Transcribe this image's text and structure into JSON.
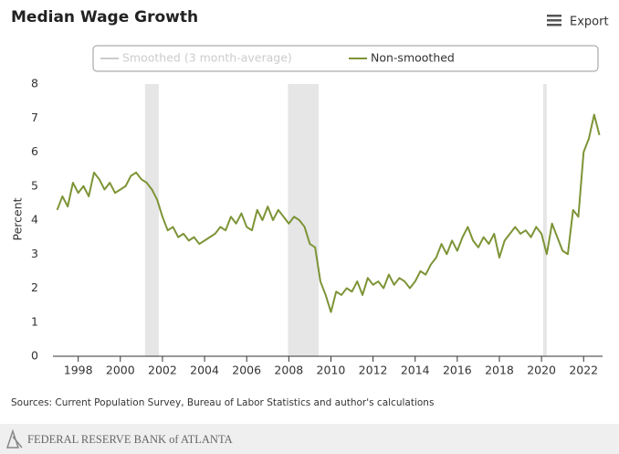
{
  "chart_data": {
    "type": "line",
    "title": "Median Wage Growth",
    "export_label": "Export",
    "y_label": "Percent",
    "source": "Sources: Current Population Survey, Bureau of Labor Statistics and author's calculations",
    "footer": "FEDERAL RESERVE BANK of ATLANTA",
    "hidden_legend_items": [
      {
        "name": "Smoothed (3 month-average)",
        "color": "#cccccc"
      }
    ],
    "recession_color": "#e6e6e6",
    "recessions": [
      [
        2001.17,
        2001.83
      ],
      [
        2007.96,
        2009.42
      ],
      [
        2020.08,
        2020.25
      ]
    ],
    "xlim": [
      1996.8,
      2022.9
    ],
    "xticks": [
      1998,
      2000,
      2002,
      2004,
      2006,
      2008,
      2010,
      2012,
      2014,
      2016,
      2018,
      2020,
      2022
    ],
    "ylim": [
      0,
      8
    ],
    "yticks": [
      0,
      1,
      2,
      3,
      4,
      5,
      6,
      7,
      8
    ],
    "x": [
      1997,
      1997.25,
      1997.5,
      1997.75,
      1998,
      1998.25,
      1998.5,
      1998.75,
      1999,
      1999.25,
      1999.5,
      1999.75,
      2000,
      2000.25,
      2000.5,
      2000.75,
      2001,
      2001.25,
      2001.5,
      2001.75,
      2002,
      2002.25,
      2002.5,
      2002.75,
      2003,
      2003.25,
      2003.5,
      2003.75,
      2004,
      2004.25,
      2004.5,
      2004.75,
      2005,
      2005.25,
      2005.5,
      2005.75,
      2006,
      2006.25,
      2006.5,
      2006.75,
      2007,
      2007.25,
      2007.5,
      2007.75,
      2008,
      2008.25,
      2008.5,
      2008.75,
      2009,
      2009.25,
      2009.5,
      2009.75,
      2010,
      2010.25,
      2010.5,
      2010.75,
      2011,
      2011.25,
      2011.5,
      2011.75,
      2012,
      2012.25,
      2012.5,
      2012.75,
      2013,
      2013.25,
      2013.5,
      2013.75,
      2014,
      2014.25,
      2014.5,
      2014.75,
      2015,
      2015.25,
      2015.5,
      2015.75,
      2016,
      2016.25,
      2016.5,
      2016.75,
      2017,
      2017.25,
      2017.5,
      2017.75,
      2018,
      2018.25,
      2018.5,
      2018.75,
      2019,
      2019.25,
      2019.5,
      2019.75,
      2020,
      2020.25,
      2020.5,
      2020.75,
      2021,
      2021.25,
      2021.5,
      2021.75,
      2022,
      2022.25,
      2022.5,
      2022.75
    ],
    "series": [
      {
        "name": "Non-smoothed",
        "color": "#7d9437",
        "values": [
          4.3,
          4.7,
          4.4,
          5.1,
          4.8,
          5.0,
          4.7,
          5.4,
          5.2,
          4.9,
          5.1,
          4.8,
          4.9,
          5.0,
          5.3,
          5.4,
          5.2,
          5.1,
          4.9,
          4.6,
          4.1,
          3.7,
          3.8,
          3.5,
          3.6,
          3.4,
          3.5,
          3.3,
          3.4,
          3.5,
          3.6,
          3.8,
          3.7,
          4.1,
          3.9,
          4.2,
          3.8,
          3.7,
          4.3,
          4.0,
          4.4,
          4.0,
          4.3,
          4.1,
          3.9,
          4.1,
          4.0,
          3.8,
          3.3,
          3.2,
          2.2,
          1.8,
          1.3,
          1.9,
          1.8,
          2.0,
          1.9,
          2.2,
          1.8,
          2.3,
          2.1,
          2.2,
          2.0,
          2.4,
          2.1,
          2.3,
          2.2,
          2.0,
          2.2,
          2.5,
          2.4,
          2.7,
          2.9,
          3.3,
          3.0,
          3.4,
          3.1,
          3.5,
          3.8,
          3.4,
          3.2,
          3.5,
          3.3,
          3.6,
          2.9,
          3.4,
          3.6,
          3.8,
          3.6,
          3.7,
          3.5,
          3.8,
          3.6,
          3.0,
          3.9,
          3.5,
          3.1,
          3.0,
          4.3,
          4.1,
          6.0,
          6.4,
          7.1,
          6.5
        ]
      }
    ]
  }
}
